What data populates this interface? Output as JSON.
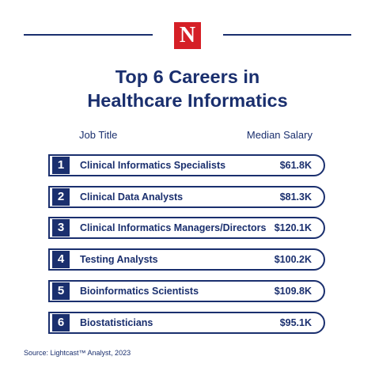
{
  "brand": {
    "logo_letter": "N",
    "accent": "#d51f26",
    "navy": "#1a2f6e"
  },
  "chart_data": {
    "type": "table",
    "title_lines": [
      "Top 6 Careers in",
      "Healthcare Informatics"
    ],
    "columns": [
      "Job Title",
      "Median Salary"
    ],
    "rows": [
      {
        "rank": "1",
        "job": "Clinical Informatics Specialists",
        "salary": "$61.8K",
        "value": 61.8
      },
      {
        "rank": "2",
        "job": "Clinical Data Analysts",
        "salary": "$81.3K",
        "value": 81.3
      },
      {
        "rank": "3",
        "job": "Clinical Informatics Managers/Directors",
        "salary": "$120.1K",
        "value": 120.1
      },
      {
        "rank": "4",
        "job": "Testing Analysts",
        "salary": "$100.2K",
        "value": 100.2
      },
      {
        "rank": "5",
        "job": "Bioinformatics Scientists",
        "salary": "$109.8K",
        "value": 109.8
      },
      {
        "rank": "6",
        "job": "Biostatisticians",
        "salary": "$95.1K",
        "value": 95.1
      }
    ],
    "source": "Source: Lightcast™ Analyst, 2023"
  }
}
